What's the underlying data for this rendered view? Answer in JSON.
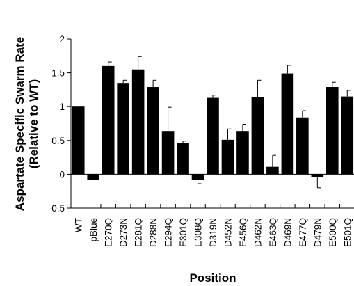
{
  "chart_data": {
    "type": "bar",
    "ylabel_line1": "Aspartate Specific Swarm Rate",
    "ylabel_line2": "(Relative to WT)",
    "xlabel": "Position",
    "ylim": [
      -0.5,
      2
    ],
    "yticks": [
      -0.5,
      0,
      0.5,
      1,
      1.5,
      2
    ],
    "ytick_labels": [
      "-0.5",
      "0",
      "0.5",
      "1",
      "1.5",
      "2"
    ],
    "grid": false,
    "legend": "none",
    "bar_color": "#000000",
    "categories": [
      "WT",
      "pBlue",
      "E270Q",
      "D273N",
      "E281Q",
      "D288N",
      "E294Q",
      "E301Q",
      "E308Q",
      "D319N",
      "D452N",
      "E456Q",
      "D462N",
      "E463Q",
      "D469N",
      "E477Q",
      "D479N",
      "E500Q",
      "E501Q"
    ],
    "values": [
      1.0,
      -0.08,
      1.6,
      1.35,
      1.55,
      1.29,
      0.64,
      0.46,
      -0.08,
      1.13,
      0.51,
      0.64,
      1.14,
      0.11,
      1.49,
      0.84,
      -0.04,
      1.29,
      1.15
    ],
    "error_plus": [
      0,
      0,
      0.06,
      0.04,
      0.19,
      0.1,
      0.35,
      0.03,
      0.06,
      0.04,
      0.16,
      0.1,
      0.25,
      0.17,
      0.12,
      0.1,
      0.16,
      0.07,
      0.09
    ]
  }
}
